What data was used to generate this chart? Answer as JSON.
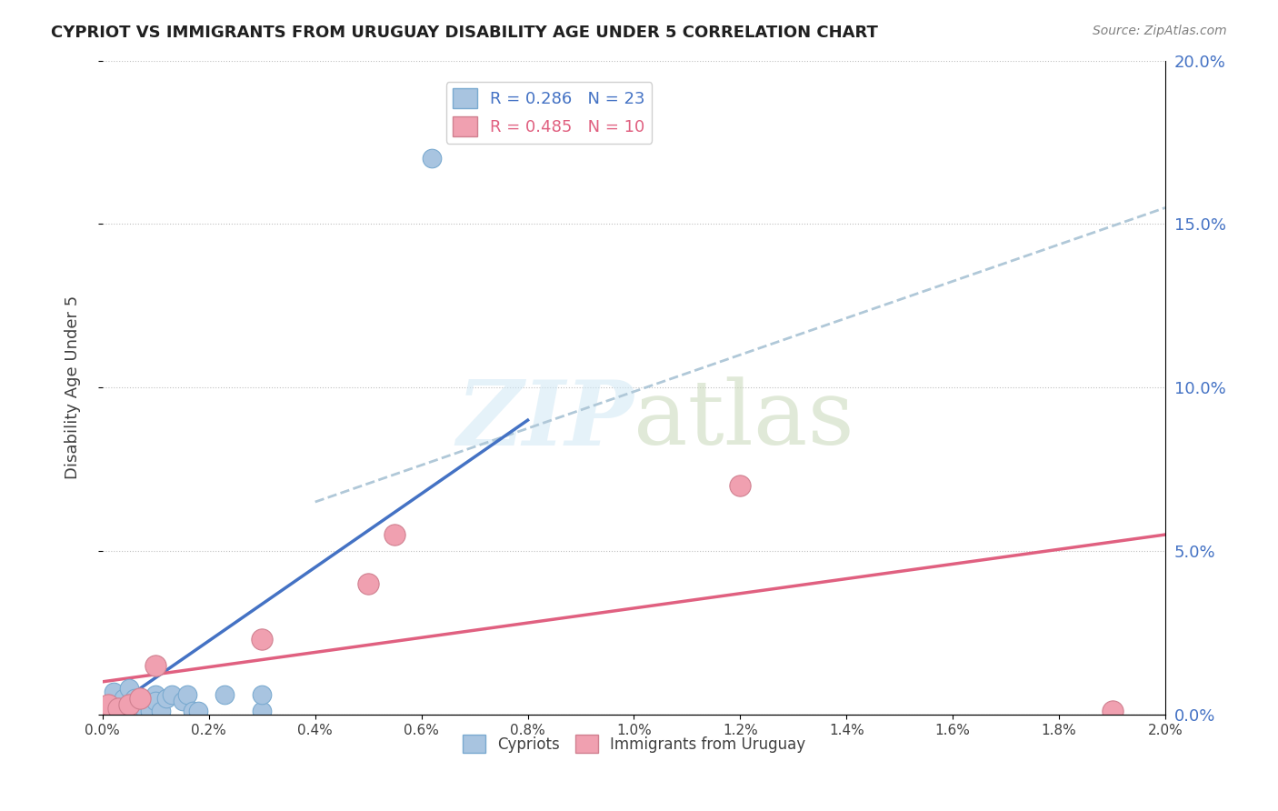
{
  "title": "CYPRIOT VS IMMIGRANTS FROM URUGUAY DISABILITY AGE UNDER 5 CORRELATION CHART",
  "source": "Source: ZipAtlas.com",
  "ylabel": "Disability Age Under 5",
  "legend_label1": "Cypriots",
  "legend_label2": "Immigrants from Uruguay",
  "r1": 0.286,
  "n1": 23,
  "r2": 0.485,
  "n2": 10,
  "xlim": [
    0.0,
    0.02
  ],
  "ylim": [
    0.0,
    0.2
  ],
  "xticks": [
    0.0,
    0.002,
    0.004,
    0.006,
    0.008,
    0.01,
    0.012,
    0.014,
    0.016,
    0.018,
    0.02
  ],
  "yticks": [
    0.0,
    0.05,
    0.1,
    0.15,
    0.2
  ],
  "color_blue": "#a8c4e0",
  "color_pink": "#f0a0b0",
  "line_blue": "#4472c4",
  "line_pink": "#e06080",
  "line_dashed": "#b0c8d8",
  "cypriots_x": [
    0.0002,
    0.0004,
    0.0005,
    0.0006,
    0.0006,
    0.0007,
    0.0008,
    0.0008,
    0.0009,
    0.001,
    0.001,
    0.001,
    0.0011,
    0.0012,
    0.0013,
    0.0015,
    0.0016,
    0.0017,
    0.0018,
    0.0023,
    0.003,
    0.003,
    0.0062
  ],
  "cypriots_y": [
    0.007,
    0.005,
    0.008,
    0.003,
    0.005,
    0.001,
    0.001,
    0.004,
    0.001,
    0.005,
    0.006,
    0.004,
    0.001,
    0.005,
    0.006,
    0.004,
    0.006,
    0.001,
    0.001,
    0.006,
    0.001,
    0.006,
    0.17
  ],
  "uruguay_x": [
    0.0001,
    0.0003,
    0.0005,
    0.0007,
    0.001,
    0.003,
    0.005,
    0.0055,
    0.012,
    0.019
  ],
  "uruguay_y": [
    0.003,
    0.002,
    0.003,
    0.005,
    0.015,
    0.023,
    0.04,
    0.055,
    0.07,
    0.001
  ],
  "blue_line_x": [
    0.0,
    0.008
  ],
  "blue_line_y": [
    0.0,
    0.09
  ],
  "pink_line_x": [
    0.0,
    0.02
  ],
  "pink_line_y": [
    0.01,
    0.055
  ],
  "dashed_line_x": [
    0.004,
    0.02
  ],
  "dashed_line_y": [
    0.065,
    0.155
  ]
}
